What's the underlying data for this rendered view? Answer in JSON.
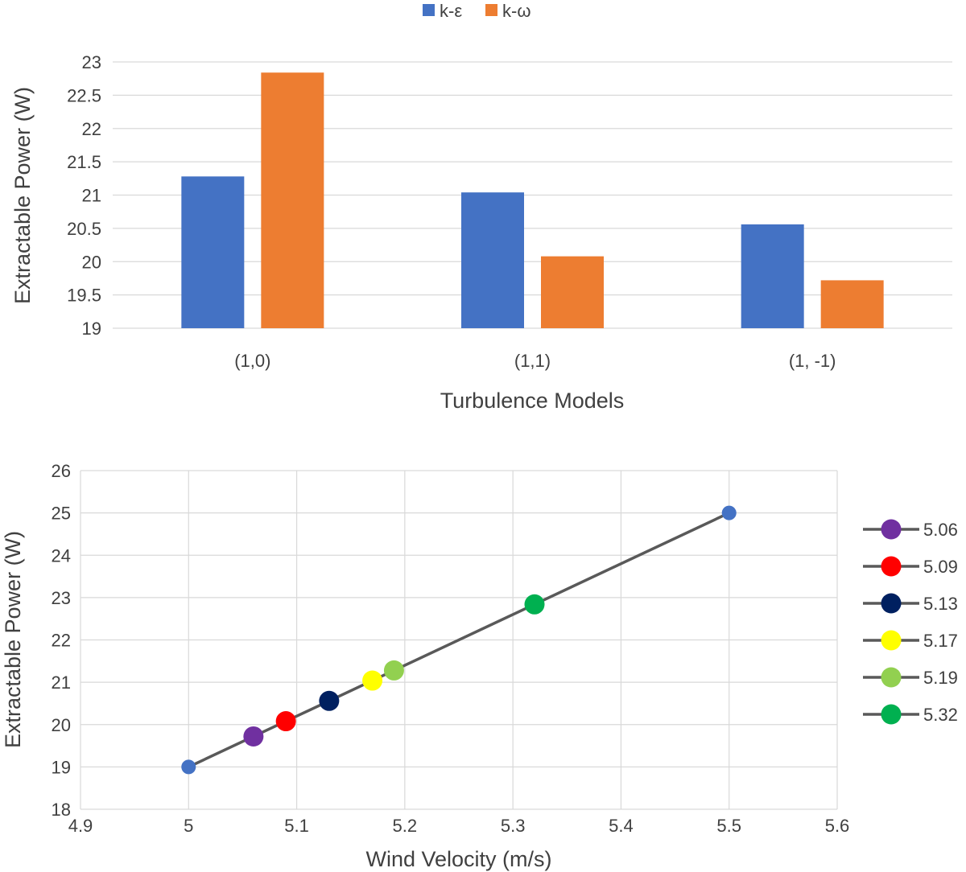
{
  "chart_data": [
    {
      "type": "bar",
      "title": "",
      "xlabel": "Turbulence Models",
      "ylabel": "Extractable Power (W)",
      "categories": [
        "(1,0)",
        "(1,1)",
        "(1, -1)"
      ],
      "series": [
        {
          "name": "k-ε",
          "color": "#4472C4",
          "values": [
            21.28,
            21.04,
            20.56
          ]
        },
        {
          "name": "k-ω",
          "color": "#ED7D31",
          "values": [
            22.84,
            20.08,
            19.72
          ]
        }
      ],
      "ylim": [
        19,
        23
      ],
      "yticks": [
        "19",
        "19.5",
        "20",
        "20.5",
        "21",
        "21.5",
        "22",
        "22.5",
        "23"
      ],
      "legend_position": "top-center",
      "grid": true
    },
    {
      "type": "scatter",
      "title": "",
      "xlabel": "Wind Velocity (m/s)",
      "ylabel": "Extractable Power (W)",
      "xlim": [
        4.9,
        5.6
      ],
      "ylim": [
        18,
        26
      ],
      "xticks": [
        "4.9",
        "5",
        "5.1",
        "5.2",
        "5.3",
        "5.4",
        "5.5",
        "5.6"
      ],
      "yticks": [
        "18",
        "19",
        "20",
        "21",
        "22",
        "23",
        "24",
        "25",
        "26"
      ],
      "line": {
        "color": "#595959",
        "points": [
          {
            "x": 5.0,
            "y": 19.0
          },
          {
            "x": 5.5,
            "y": 25.0
          }
        ]
      },
      "endpoint_color": "#4472C4",
      "series": [
        {
          "name": "5.06",
          "x": 5.06,
          "y": 19.72,
          "color": "#7030A0"
        },
        {
          "name": "5.09",
          "x": 5.09,
          "y": 20.08,
          "color": "#FF0000"
        },
        {
          "name": "5.13",
          "x": 5.13,
          "y": 20.56,
          "color": "#002060"
        },
        {
          "name": "5.17",
          "x": 5.17,
          "y": 21.04,
          "color": "#FFFF00"
        },
        {
          "name": "5.19",
          "x": 5.19,
          "y": 21.28,
          "color": "#92D050"
        },
        {
          "name": "5.32",
          "x": 5.32,
          "y": 22.84,
          "color": "#00B050"
        }
      ],
      "legend_position": "right",
      "grid": true
    }
  ]
}
